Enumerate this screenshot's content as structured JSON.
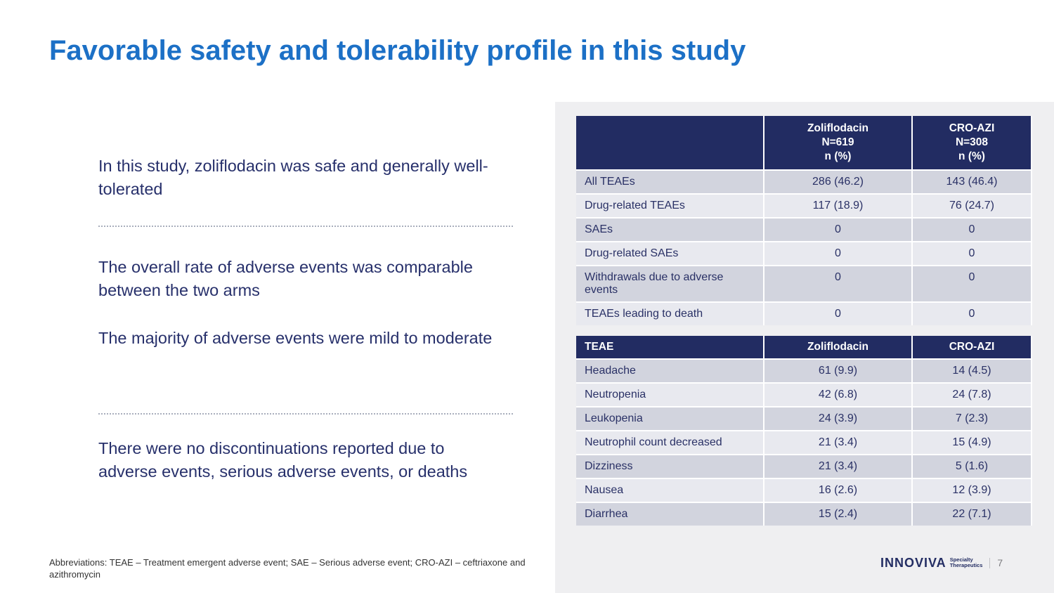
{
  "slide": {
    "title": "Favorable safety and tolerability profile in this study",
    "page_number": "7"
  },
  "colors": {
    "title_blue": "#1C70C6",
    "body_navy": "#27306B",
    "table_header_navy": "#222C62",
    "row_dark": "#D2D4DE",
    "row_light": "#E8E9EF",
    "panel_gray": "#EFEFF1"
  },
  "left": {
    "bullets": [
      "In this study, zoliflodacin was safe and generally well-tolerated",
      "The overall rate of adverse events was comparable between the two arms",
      "The majority of adverse events were mild to moderate",
      "There were no discontinuations reported due to adverse events, serious adverse events, or deaths"
    ],
    "footnote": "Abbreviations: TEAE – Treatment emergent adverse event; SAE – Serious adverse event; CRO-AZI – ceftriaxone and azithromycin"
  },
  "tables": {
    "safety": {
      "col_zoliflodacin": "Zoliflodacin\nN=619\nn (%)",
      "col_croazi": "CRO-AZI\nN=308\nn (%)",
      "rows": [
        {
          "label": "All TEAEs",
          "zoliflodacin": "286 (46.2)",
          "cro_azi": "143 (46.4)"
        },
        {
          "label": "Drug-related TEAEs",
          "zoliflodacin": "117 (18.9)",
          "cro_azi": "76 (24.7)"
        },
        {
          "label": "SAEs",
          "zoliflodacin": "0",
          "cro_azi": "0"
        },
        {
          "label": "Drug-related SAEs",
          "zoliflodacin": "0",
          "cro_azi": "0"
        },
        {
          "label": "Withdrawals due to adverse events",
          "zoliflodacin": "0",
          "cro_azi": "0"
        },
        {
          "label": "TEAEs leading to death",
          "zoliflodacin": "0",
          "cro_azi": "0"
        }
      ]
    },
    "teae": {
      "headers": [
        "TEAE",
        "Zoliflodacin",
        "CRO-AZI"
      ],
      "rows": [
        {
          "label": "Headache",
          "zoliflodacin": "61 (9.9)",
          "cro_azi": "14 (4.5)"
        },
        {
          "label": "Neutropenia",
          "zoliflodacin": "42 (6.8)",
          "cro_azi": "24 (7.8)"
        },
        {
          "label": "Leukopenia",
          "zoliflodacin": "24 (3.9)",
          "cro_azi": "7 (2.3)"
        },
        {
          "label": "Neutrophil count decreased",
          "zoliflodacin": "21 (3.4)",
          "cro_azi": "15 (4.9)"
        },
        {
          "label": "Dizziness",
          "zoliflodacin": "21 (3.4)",
          "cro_azi": "5 (1.6)"
        },
        {
          "label": "Nausea",
          "zoliflodacin": "16 (2.6)",
          "cro_azi": "12 (3.9)"
        },
        {
          "label": "Diarrhea",
          "zoliflodacin": "15 (2.4)",
          "cro_azi": "22 (7.1)"
        }
      ]
    }
  },
  "footer": {
    "brand": "INNOVIVA",
    "sub1": "Specialty",
    "sub2": "Therapeutics"
  }
}
